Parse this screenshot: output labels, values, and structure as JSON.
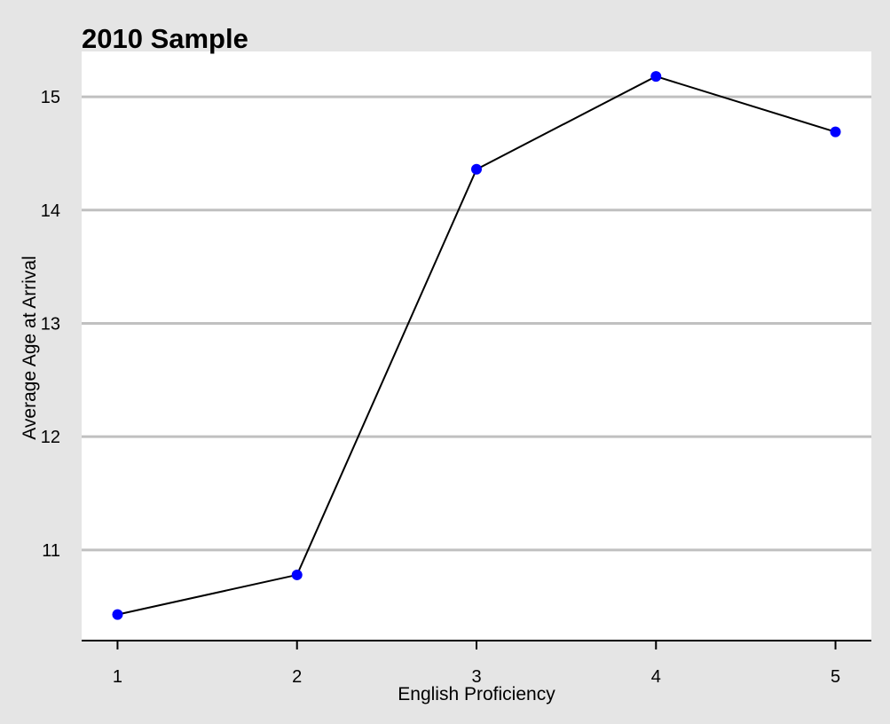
{
  "chart_data": {
    "type": "line",
    "title": "2010 Sample",
    "xlabel": "English Proficiency",
    "ylabel": "Average Age at Arrival",
    "x": [
      1,
      2,
      3,
      4,
      5
    ],
    "y": [
      10.43,
      10.78,
      14.36,
      15.18,
      14.69
    ],
    "xticks": [
      1,
      2,
      3,
      4,
      5
    ],
    "yticks": [
      11,
      12,
      13,
      14,
      15
    ],
    "xlim": [
      0.8,
      5.2
    ],
    "ylim": [
      10.2,
      15.4
    ],
    "grid": "horizontal",
    "colors": {
      "background": "#e5e5e5",
      "panel": "#ffffff",
      "grid": "#c0c0c0",
      "line": "#000000",
      "point": "#0000ff"
    }
  }
}
